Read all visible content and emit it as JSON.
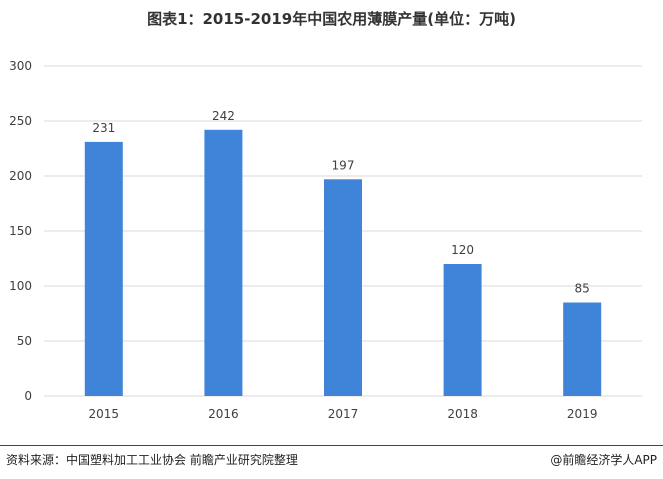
{
  "title": "图表1：2015-2019年中国农用薄膜产量(单位：万吨)",
  "footer": {
    "source": "资料来源：中国塑料加工工业协会 前瞻产业研究院整理",
    "brand": "@前瞻经济学人APP"
  },
  "colors": {
    "bar": "#3f84d8",
    "grid": "#d9d9d9",
    "axis_text": "#404040"
  },
  "chart_data": {
    "type": "bar",
    "title": "图表1：2015-2019年中国农用薄膜产量(单位：万吨)",
    "categories": [
      "2015",
      "2016",
      "2017",
      "2018",
      "2019"
    ],
    "values": [
      231,
      242,
      197,
      120,
      85
    ],
    "ylim": [
      0,
      300
    ],
    "yticks": [
      0,
      50,
      100,
      150,
      200,
      250,
      300
    ],
    "grid": true,
    "data_labels": true
  }
}
